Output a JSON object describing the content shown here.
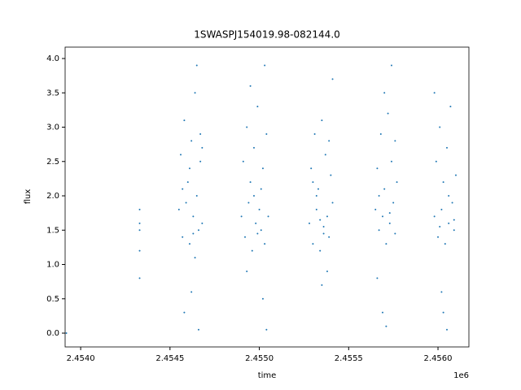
{
  "chart_data": {
    "type": "scatter",
    "title": "1SWASPJ154019.98-082144.0",
    "x_label": "time",
    "y_label": "flux",
    "x_offset_label": "1e6",
    "color": "#1f77b4",
    "xlim": [
      2.453913,
      2.456173
    ],
    "ylim": [
      -0.201,
      4.166
    ],
    "xticks": [
      {
        "value": 2.454,
        "label": "2.4540"
      },
      2.4545,
      {
        "value": 2.455,
        "label": "2.4550"
      },
      2.4555,
      {
        "value": 2.456,
        "label": "2.4560"
      }
    ],
    "yticks": [
      {
        "value": 0,
        "label": "0.0"
      },
      0.5,
      {
        "value": 1,
        "label": "1.0"
      },
      1.5,
      {
        "value": 2,
        "label": "2.0"
      },
      2.5,
      {
        "value": 3,
        "label": "3.0"
      },
      3.5,
      {
        "value": 4,
        "label": "4.0"
      }
    ],
    "x": [
      2.45392,
      2.45433,
      2.45433,
      2.45433,
      2.45433,
      2.45433,
      2.45455,
      2.45456,
      2.45457,
      2.45458,
      2.45459,
      2.4546,
      2.45461,
      2.45462,
      2.45463,
      2.45464,
      2.45465,
      2.45466,
      2.45467,
      2.45468,
      2.45465,
      2.45462,
      2.45466,
      2.45458,
      2.45467,
      2.45464,
      2.45461,
      2.45457,
      2.45463,
      2.45468,
      2.4549,
      2.45491,
      2.45492,
      2.45493,
      2.45494,
      2.45495,
      2.45496,
      2.45497,
      2.45498,
      2.45499,
      2.455,
      2.45501,
      2.45502,
      2.45503,
      2.45504,
      2.45505,
      2.45502,
      2.45504,
      2.45493,
      2.45497,
      2.45499,
      2.45501,
      2.45495,
      2.45503,
      2.45528,
      2.45529,
      2.4553,
      2.45531,
      2.45532,
      2.45533,
      2.45534,
      2.45535,
      2.45536,
      2.45537,
      2.45538,
      2.45539,
      2.4554,
      2.45541,
      2.45535,
      2.45538,
      2.45541,
      2.45532,
      2.45536,
      2.4553,
      2.45539,
      2.45534,
      2.45565,
      2.45566,
      2.45567,
      2.45568,
      2.45569,
      2.4557,
      2.45571,
      2.45572,
      2.45573,
      2.45574,
      2.45575,
      2.45576,
      2.45577,
      2.45569,
      2.45571,
      2.4557,
      2.45574,
      2.45567,
      2.45573,
      2.45566,
      2.45576,
      2.45598,
      2.45599,
      2.456,
      2.45601,
      2.45602,
      2.45603,
      2.45604,
      2.45605,
      2.45606,
      2.45607,
      2.45608,
      2.45609,
      2.4561,
      2.45603,
      2.45605,
      2.45598,
      2.45602,
      2.45606,
      2.45609,
      2.45601
    ],
    "values": [
      0.0,
      1.8,
      1.5,
      1.2,
      0.8,
      1.6,
      1.8,
      2.6,
      1.4,
      3.1,
      1.9,
      2.2,
      1.3,
      2.8,
      1.7,
      3.5,
      2.0,
      1.5,
      2.5,
      1.6,
      3.9,
      0.6,
      0.05,
      0.3,
      2.9,
      1.1,
      2.4,
      2.1,
      1.45,
      2.7,
      1.7,
      2.5,
      1.4,
      3.0,
      1.9,
      2.2,
      1.2,
      2.7,
      1.6,
      3.3,
      1.8,
      1.5,
      2.4,
      1.3,
      2.9,
      1.7,
      0.5,
      0.05,
      0.9,
      2.0,
      1.45,
      2.1,
      3.6,
      3.9,
      1.6,
      2.4,
      1.3,
      2.9,
      1.8,
      2.1,
      1.2,
      3.1,
      1.55,
      2.6,
      1.7,
      1.4,
      2.3,
      1.9,
      0.7,
      0.9,
      3.7,
      2.0,
      1.45,
      2.2,
      2.8,
      1.65,
      1.8,
      2.4,
      1.5,
      2.9,
      1.7,
      2.1,
      1.3,
      3.2,
      1.6,
      2.5,
      1.9,
      1.45,
      2.2,
      0.3,
      0.1,
      3.5,
      3.9,
      2.0,
      1.75,
      0.8,
      2.8,
      1.7,
      2.5,
      1.4,
      3.0,
      1.8,
      2.2,
      1.3,
      2.7,
      1.6,
      3.3,
      1.9,
      1.5,
      2.3,
      0.3,
      0.05,
      3.5,
      0.6,
      2.0,
      1.65,
      1.55
    ]
  }
}
